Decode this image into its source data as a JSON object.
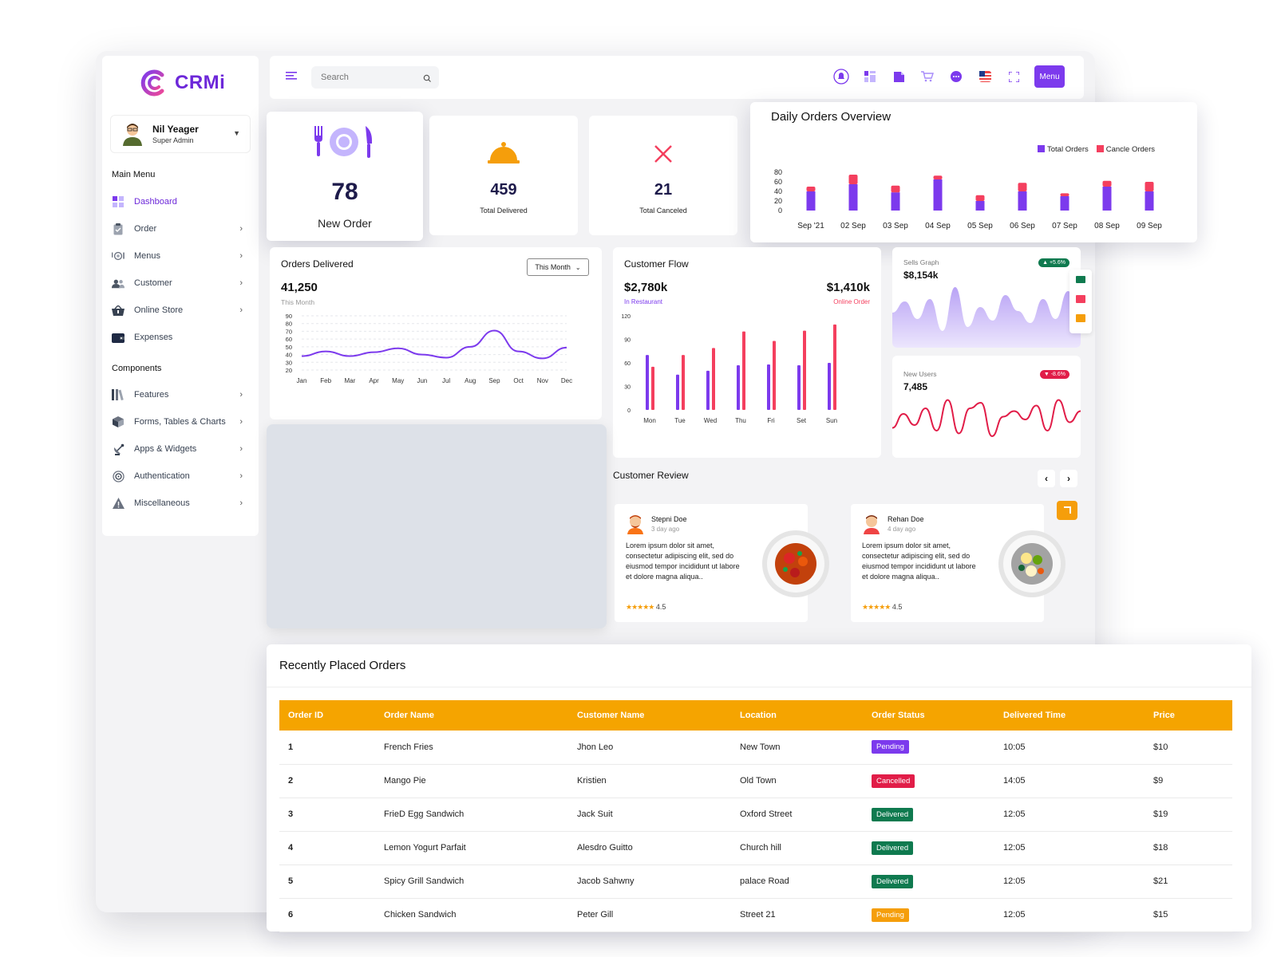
{
  "app": {
    "name": "CRMi"
  },
  "profile": {
    "name": "Nil Yeager",
    "role": "Super Admin"
  },
  "sidebar": {
    "main_label": "Main Menu",
    "components_label": "Components",
    "main_items": [
      {
        "label": "Dashboard",
        "icon": "dashboard-icon"
      },
      {
        "label": "Order",
        "icon": "clipboard-icon"
      },
      {
        "label": "Menus",
        "icon": "plate-icon"
      },
      {
        "label": "Customer",
        "icon": "users-icon"
      },
      {
        "label": "Online Store",
        "icon": "basket-icon"
      },
      {
        "label": "Expenses",
        "icon": "wallet-icon"
      }
    ],
    "component_items": [
      {
        "label": "Features",
        "icon": "books-icon"
      },
      {
        "label": "Forms, Tables & Charts",
        "icon": "box-icon"
      },
      {
        "label": "Apps & Widgets",
        "icon": "satellite-icon"
      },
      {
        "label": "Authentication",
        "icon": "fingerprint-icon"
      },
      {
        "label": "Miscellaneous",
        "icon": "warning-icon"
      }
    ]
  },
  "topbar": {
    "search_placeholder": "Search",
    "menu_label": "Menu"
  },
  "stats": {
    "new_order": {
      "value": "78",
      "label": "New Order"
    },
    "delivered": {
      "value": "459",
      "label": "Total Delivered"
    },
    "canceled": {
      "value": "21",
      "label": "Total Canceled"
    }
  },
  "daily_orders": {
    "title": "Daily Orders Overview",
    "legend": [
      "Total Orders",
      "Cancle Orders"
    ],
    "colors": {
      "total": "#7c3aed",
      "cancel": "#f43f5e"
    }
  },
  "orders_delivered": {
    "title": "Orders Delivered",
    "filter": "This Month",
    "value": "41,250",
    "subtitle": "This Month"
  },
  "customer_flow": {
    "title": "Customer Flow",
    "left_value": "$2,780k",
    "left_label": "In Restaurant",
    "right_value": "$1,410k",
    "right_label": "Online Order"
  },
  "sells_graph": {
    "title": "Sells Graph",
    "value": "$8,154k",
    "badge": "+5.6%"
  },
  "new_users": {
    "title": "New Users",
    "value": "7,485",
    "badge": "-8.6%"
  },
  "reviews": {
    "title": "Customer Review",
    "items": [
      {
        "name": "Stepni Doe",
        "ago": "3 day ago",
        "text": "Lorem ipsum dolor sit amet, consectetur adipiscing elit, sed do eiusmod tempor incididunt ut labore et dolore magna aliqua..",
        "rating": "4.5"
      },
      {
        "name": "Rehan Doe",
        "ago": "4 day ago",
        "text": "Lorem ipsum dolor sit amet, consectetur adipiscing elit, sed do eiusmod tempor incididunt ut labore et dolore magna aliqua..",
        "rating": "4.5"
      }
    ]
  },
  "recent_orders": {
    "title": "Recently Placed Orders",
    "columns": [
      "Order ID",
      "Order Name",
      "Customer Name",
      "Location",
      "Order Status",
      "Delivered Time",
      "Price"
    ],
    "status_colors": {
      "Pending": "#7c3aed",
      "Cancelled": "#e11d48",
      "Delivered": "#0f7a4f"
    },
    "rows": [
      {
        "id": "1",
        "name": "French Fries",
        "customer": "Jhon Leo",
        "location": "New Town",
        "status": "Pending",
        "time": "10:05",
        "price": "$10"
      },
      {
        "id": "2",
        "name": "Mango Pie",
        "customer": "Kristien",
        "location": "Old Town",
        "status": "Cancelled",
        "time": "14:05",
        "price": "$9"
      },
      {
        "id": "3",
        "name": "FrieD Egg Sandwich",
        "customer": "Jack Suit",
        "location": "Oxford Street",
        "status": "Delivered",
        "time": "12:05",
        "price": "$19"
      },
      {
        "id": "4",
        "name": "Lemon Yogurt Parfait",
        "customer": "Alesdro Guitto",
        "location": "Church hill",
        "status": "Delivered",
        "time": "12:05",
        "price": "$18"
      },
      {
        "id": "5",
        "name": "Spicy Grill Sandwich",
        "customer": "Jacob Sahwny",
        "location": "palace Road",
        "status": "Delivered",
        "time": "12:05",
        "price": "$21"
      },
      {
        "id": "6",
        "name": "Chicken Sandwich",
        "customer": "Peter Gill",
        "location": "Street 21",
        "status": "Pending",
        "time": "12:05",
        "price": "$15"
      }
    ]
  },
  "chart_data": [
    {
      "type": "bar",
      "categories": [
        "Sep '21",
        "02 Sep",
        "03 Sep",
        "04 Sep",
        "05 Sep",
        "06 Sep",
        "07 Sep",
        "08 Sep",
        "09 Sep"
      ],
      "series": [
        {
          "name": "Total Orders",
          "values": [
            40,
            55,
            38,
            65,
            20,
            40,
            30,
            50,
            40
          ]
        },
        {
          "name": "Cancle Orders",
          "values": [
            10,
            20,
            14,
            8,
            12,
            18,
            6,
            12,
            20
          ]
        }
      ],
      "stacked": true,
      "yticks": [
        0,
        20,
        40,
        60,
        80
      ],
      "ylim": [
        0,
        80
      ],
      "title": "Daily Orders Overview",
      "legend_position": "top-right"
    },
    {
      "type": "line",
      "categories": [
        "Jan",
        "Feb",
        "Mar",
        "Apr",
        "May",
        "Jun",
        "Jul",
        "Aug",
        "Sep",
        "Oct",
        "Nov",
        "Dec"
      ],
      "series": [
        {
          "values": [
            38,
            44,
            38,
            43,
            48,
            40,
            36,
            50,
            71,
            44,
            35,
            49
          ]
        }
      ],
      "yticks": [
        20,
        30,
        40,
        50,
        60,
        70,
        80,
        90
      ],
      "ylim": [
        20,
        90
      ],
      "title": "Orders Delivered",
      "grid": true
    },
    {
      "type": "bar",
      "categories": [
        "Mon",
        "Tue",
        "Wed",
        "Thu",
        "Fri",
        "Set",
        "Sun"
      ],
      "series": [
        {
          "name": "In Restaurant",
          "values": [
            70,
            45,
            50,
            57,
            58,
            57,
            60
          ]
        },
        {
          "name": "Online Order",
          "values": [
            55,
            70,
            79,
            100,
            88,
            101,
            109
          ]
        }
      ],
      "yticks": [
        0,
        30,
        60,
        90,
        120
      ],
      "ylim": [
        0,
        120
      ],
      "title": "Customer Flow"
    },
    {
      "type": "area",
      "series": [
        {
          "values": [
            38,
            52,
            30,
            55,
            15,
            70,
            20,
            45,
            28,
            60,
            40,
            25,
            55,
            30,
            65,
            20
          ]
        }
      ],
      "ylim": [
        0,
        80
      ],
      "title": "Sells Graph"
    },
    {
      "type": "line",
      "series": [
        {
          "values": [
            25,
            50,
            30,
            60,
            20,
            75,
            15,
            60,
            70,
            10,
            45,
            55,
            40,
            65,
            20,
            75,
            35,
            55
          ]
        }
      ],
      "ylim": [
        0,
        80
      ],
      "title": "New Users"
    }
  ]
}
